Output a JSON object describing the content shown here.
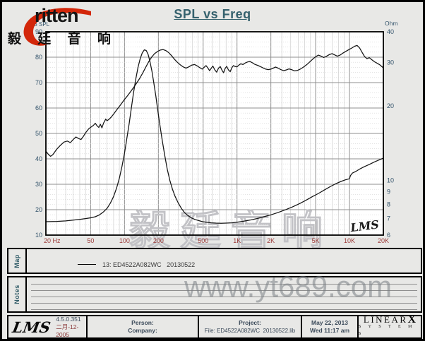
{
  "header": {
    "title": "SPL vs Freq"
  },
  "brand": {
    "name": "ritten",
    "cn": "毅 廷 音 响",
    "swoosh_icon": "red-comet-swoosh"
  },
  "colors": {
    "accent_red": "#d3270a",
    "title_teal": "#35616d",
    "axis_value_blue": "#33536b",
    "freq_label_maroon": "#9b3a38",
    "curve_black": "#141414",
    "grid_major": "#8f8f8f",
    "grid_minor": "#cecece",
    "watermark_gray": "#c2c2c6"
  },
  "chart_data": {
    "type": "line",
    "title": "SPL vs Freq",
    "grid": "log-x, both axes on",
    "legend_position": "map panel below chart",
    "x_axis": {
      "label": "Hz",
      "scale": "log",
      "min": 20,
      "max": 20000,
      "ticks": [
        {
          "f": 20,
          "label": "20 Hz"
        },
        {
          "f": 50,
          "label": "50"
        },
        {
          "f": 100,
          "label": "100"
        },
        {
          "f": 200,
          "label": "200"
        },
        {
          "f": 500,
          "label": "500"
        },
        {
          "f": 1000,
          "label": "1K"
        },
        {
          "f": 2000,
          "label": "2K"
        },
        {
          "f": 5000,
          "label": "5K"
        },
        {
          "f": 10000,
          "label": "10K"
        },
        {
          "f": 20000,
          "label": "20K"
        }
      ]
    },
    "y_left": {
      "label": "dB SPL",
      "scale": "linear",
      "min": 10,
      "max": 90,
      "ticks": [
        90,
        80,
        70,
        60,
        50,
        40,
        30,
        20,
        10
      ]
    },
    "y_right": {
      "label": "Ohm",
      "scale": "log",
      "min": 6,
      "max": 40,
      "ticks": [
        40,
        30,
        20,
        10,
        9,
        8,
        7,
        6
      ]
    },
    "series": [
      {
        "name": "13: ED4522A082WC 20130522 (SPL)",
        "axis": "left",
        "unit": "dB",
        "points": [
          [
            20,
            43
          ],
          [
            21,
            41.8
          ],
          [
            22,
            41
          ],
          [
            23,
            41.6
          ],
          [
            25,
            43.8
          ],
          [
            27,
            45.4
          ],
          [
            29,
            46.6
          ],
          [
            31,
            47
          ],
          [
            33,
            46.4
          ],
          [
            35,
            47.6
          ],
          [
            37,
            48.6
          ],
          [
            39,
            48
          ],
          [
            41,
            47.6
          ],
          [
            43,
            48.8
          ],
          [
            45,
            50.2
          ],
          [
            48,
            51.8
          ],
          [
            50,
            52.4
          ],
          [
            53,
            53.2
          ],
          [
            55,
            54
          ],
          [
            57,
            53
          ],
          [
            59,
            52.4
          ],
          [
            61,
            53.6
          ],
          [
            63,
            52.2
          ],
          [
            65,
            54
          ],
          [
            68,
            55.6
          ],
          [
            70,
            55
          ],
          [
            73,
            55.6
          ],
          [
            76,
            56.4
          ],
          [
            80,
            57.6
          ],
          [
            85,
            59.2
          ],
          [
            90,
            60.6
          ],
          [
            95,
            62
          ],
          [
            100,
            63.4
          ],
          [
            107,
            65
          ],
          [
            114,
            66.6
          ],
          [
            121,
            68.2
          ],
          [
            129,
            70
          ],
          [
            137,
            71.8
          ],
          [
            146,
            74
          ],
          [
            155,
            76.2
          ],
          [
            164,
            78.2
          ],
          [
            174,
            80
          ],
          [
            185,
            81.4
          ],
          [
            196,
            82.2
          ],
          [
            208,
            82.8
          ],
          [
            220,
            83
          ],
          [
            233,
            82.6
          ],
          [
            247,
            81.8
          ],
          [
            262,
            80.6
          ],
          [
            278,
            79.2
          ],
          [
            295,
            78
          ],
          [
            313,
            77
          ],
          [
            332,
            76.2
          ],
          [
            352,
            75.7
          ],
          [
            373,
            76.2
          ],
          [
            396,
            76.9
          ],
          [
            420,
            77.1
          ],
          [
            445,
            76.5
          ],
          [
            470,
            75.8
          ],
          [
            490,
            75.3
          ],
          [
            510,
            76
          ],
          [
            530,
            76.7
          ],
          [
            550,
            75.8
          ],
          [
            570,
            74.7
          ],
          [
            590,
            75.6
          ],
          [
            610,
            76.5
          ],
          [
            635,
            75
          ],
          [
            660,
            74.1
          ],
          [
            685,
            75.7
          ],
          [
            710,
            76.3
          ],
          [
            735,
            74.9
          ],
          [
            760,
            73.9
          ],
          [
            785,
            75.6
          ],
          [
            810,
            76.4
          ],
          [
            840,
            75
          ],
          [
            870,
            74.3
          ],
          [
            900,
            75.9
          ],
          [
            930,
            76.7
          ],
          [
            965,
            76.3
          ],
          [
            1000,
            76.2
          ],
          [
            1040,
            76.9
          ],
          [
            1080,
            77.4
          ],
          [
            1130,
            77.1
          ],
          [
            1180,
            77.7
          ],
          [
            1240,
            78.1
          ],
          [
            1300,
            78.3
          ],
          [
            1370,
            77.8
          ],
          [
            1440,
            77.2
          ],
          [
            1520,
            76.8
          ],
          [
            1600,
            76.4
          ],
          [
            1700,
            75.8
          ],
          [
            1800,
            75.3
          ],
          [
            1900,
            75.1
          ],
          [
            2000,
            75.3
          ],
          [
            2100,
            75.7
          ],
          [
            2200,
            76.1
          ],
          [
            2320,
            75.7
          ],
          [
            2450,
            75.1
          ],
          [
            2600,
            74.7
          ],
          [
            2750,
            75
          ],
          [
            2900,
            75.4
          ],
          [
            3050,
            75.1
          ],
          [
            3250,
            74.6
          ],
          [
            3450,
            74.8
          ],
          [
            3650,
            75.3
          ],
          [
            3900,
            76.1
          ],
          [
            4150,
            77
          ],
          [
            4400,
            78
          ],
          [
            4700,
            79.2
          ],
          [
            5000,
            80.2
          ],
          [
            5300,
            80.8
          ],
          [
            5600,
            80.4
          ],
          [
            5900,
            79.9
          ],
          [
            6200,
            80.3
          ],
          [
            6600,
            81
          ],
          [
            7000,
            81.4
          ],
          [
            7400,
            80.9
          ],
          [
            7800,
            80.4
          ],
          [
            8300,
            80.9
          ],
          [
            8800,
            81.7
          ],
          [
            9300,
            82.3
          ],
          [
            9900,
            83
          ],
          [
            10500,
            83.6
          ],
          [
            11100,
            84.3
          ],
          [
            11700,
            84.6
          ],
          [
            12300,
            83.6
          ],
          [
            12900,
            82
          ],
          [
            13600,
            80.3
          ],
          [
            14300,
            79.4
          ],
          [
            15000,
            79.8
          ],
          [
            15800,
            79
          ],
          [
            16700,
            78.2
          ],
          [
            17600,
            77.6
          ],
          [
            18600,
            77
          ],
          [
            19300,
            76.4
          ],
          [
            20000,
            75.8
          ]
        ]
      },
      {
        "name": "13: ED4522A082WC 20130522 (Impedance)",
        "axis": "right",
        "unit": "Ohm",
        "points": [
          [
            20,
            6.8
          ],
          [
            25,
            6.82
          ],
          [
            30,
            6.85
          ],
          [
            35,
            6.9
          ],
          [
            40,
            6.95
          ],
          [
            45,
            7
          ],
          [
            50,
            7.05
          ],
          [
            55,
            7.12
          ],
          [
            60,
            7.25
          ],
          [
            65,
            7.45
          ],
          [
            70,
            7.7
          ],
          [
            75,
            8.1
          ],
          [
            80,
            8.6
          ],
          [
            85,
            9.3
          ],
          [
            90,
            10.2
          ],
          [
            95,
            11.4
          ],
          [
            100,
            12.9
          ],
          [
            105,
            14.8
          ],
          [
            110,
            17
          ],
          [
            115,
            19.6
          ],
          [
            120,
            22.5
          ],
          [
            126,
            25.8
          ],
          [
            132,
            28.8
          ],
          [
            138,
            31.2
          ],
          [
            144,
            32.9
          ],
          [
            150,
            33.8
          ],
          [
            156,
            33.6
          ],
          [
            162,
            32.4
          ],
          [
            168,
            30.4
          ],
          [
            175,
            27.8
          ],
          [
            182,
            24.9
          ],
          [
            190,
            21.9
          ],
          [
            198,
            19.1
          ],
          [
            207,
            16.6
          ],
          [
            217,
            14.4
          ],
          [
            228,
            12.6
          ],
          [
            240,
            11.1
          ],
          [
            253,
            10
          ],
          [
            267,
            9.2
          ],
          [
            282,
            8.6
          ],
          [
            300,
            8.1
          ],
          [
            320,
            7.7
          ],
          [
            342,
            7.4
          ],
          [
            366,
            7.2
          ],
          [
            392,
            7.05
          ],
          [
            420,
            6.95
          ],
          [
            455,
            6.87
          ],
          [
            495,
            6.8
          ],
          [
            540,
            6.76
          ],
          [
            590,
            6.73
          ],
          [
            650,
            6.71
          ],
          [
            720,
            6.7
          ],
          [
            800,
            6.71
          ],
          [
            900,
            6.73
          ],
          [
            1000,
            6.77
          ],
          [
            1150,
            6.83
          ],
          [
            1300,
            6.9
          ],
          [
            1500,
            7
          ],
          [
            1700,
            7.1
          ],
          [
            2000,
            7.25
          ],
          [
            2300,
            7.4
          ],
          [
            2700,
            7.6
          ],
          [
            3100,
            7.8
          ],
          [
            3600,
            8.05
          ],
          [
            4100,
            8.3
          ],
          [
            4700,
            8.6
          ],
          [
            5300,
            8.85
          ],
          [
            6000,
            9.15
          ],
          [
            6800,
            9.45
          ],
          [
            7600,
            9.7
          ],
          [
            8400,
            9.9
          ],
          [
            9200,
            10.05
          ],
          [
            10000,
            10.15
          ],
          [
            10200,
            10.45
          ],
          [
            10600,
            10.7
          ],
          [
            11500,
            10.9
          ],
          [
            12500,
            11.15
          ],
          [
            13500,
            11.35
          ],
          [
            15000,
            11.6
          ],
          [
            16500,
            11.85
          ],
          [
            18000,
            12.05
          ],
          [
            20000,
            12.3
          ]
        ]
      }
    ],
    "plot_signature": "LMS"
  },
  "map": {
    "label": "Map",
    "legend_text": "13: ED4522A082WC   20130522"
  },
  "notes": {
    "label": "Notes"
  },
  "watermark": {
    "site": "www.yt689.com",
    "cn": "毅廷音响"
  },
  "status": {
    "lms_logo": "LMS",
    "version": "4.5.0.351",
    "date_cn": "二月-12-2005",
    "person_label": "Person:",
    "company_label": "Company:",
    "project_label": "Project:",
    "file_label": "File: ED4522A082WC  20130522.lib",
    "date": "May 22, 2013",
    "time": "Wed 11:17 am",
    "linearx": "LINEAR",
    "linearx_x": "X",
    "systems": "S Y S T E M S"
  }
}
